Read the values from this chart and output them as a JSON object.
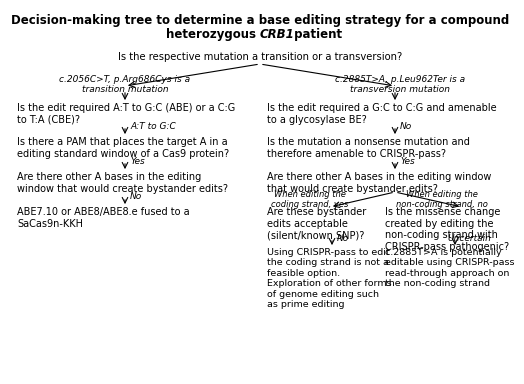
{
  "bg_color": "#ffffff",
  "title1": "Decision-making tree to determine a base editing strategy for a compound",
  "title2_pre": "heterozygous ",
  "title2_italic": "CRB1",
  "title2_post": " patient",
  "root_q": "Is the respective mutation a transition or a transversion?",
  "left_italic": "c.2056C>T, p.Arg686Cys is a\ntransition mutation",
  "right_italic": "c.2885T>A, p.Leu962Ter is a\ntransversion mutation",
  "left_q1": "Is the edit required A:T to G:C (ABE) or a C:G\nto T:A (CBE)?",
  "right_q1": "Is the edit required a G:C to C:G and amenable\nto a glycosylase BE?",
  "left_ans1": "A:T to G:C",
  "right_ans1": "No",
  "left_q2": "Is there a PAM that places the target A in a\nediting standard window of a Cas9 protein?",
  "right_q2": "Is the mutation a nonsense mutation and\ntherefore amenable to CRISPR-pass?",
  "left_ans2": "Yes",
  "right_ans2": "Yes",
  "left_q3": "Are there other A bases in the editing\nwindow that would create bystander edits?",
  "right_q3": "Are there other A bases in the editing window\nthat would create bystander edits?",
  "left_ans3": "No",
  "right_ans3_left": "When editing the\ncoding strand, yes",
  "right_ans3_right": "When editing the\nnon-coding strand, no",
  "left_terminal": "ABE7.10 or ABE8/ABE8.e fused to a\nSaCas9n-KKH",
  "right_q4_left": "Are these bystander\nedits acceptable\n(silent/known SNP)?",
  "right_q4_right": "Is the missense change\ncreated by editing the\nnon-coding strand with\nCRISPR-pass pathogenic?",
  "right_ans4_left": "No",
  "right_ans4_right": "Uncertain",
  "right_term_left": "Using CRISPR-pass to edit\nthe coding strand is not a\nfeasible option.\nExploration of other forms\nof genome editing such\nas prime editing",
  "right_term_right": "c.2885T>A is potentially\neditable using CRISPR-pass\nread-through approach on\nthe non-coding strand"
}
